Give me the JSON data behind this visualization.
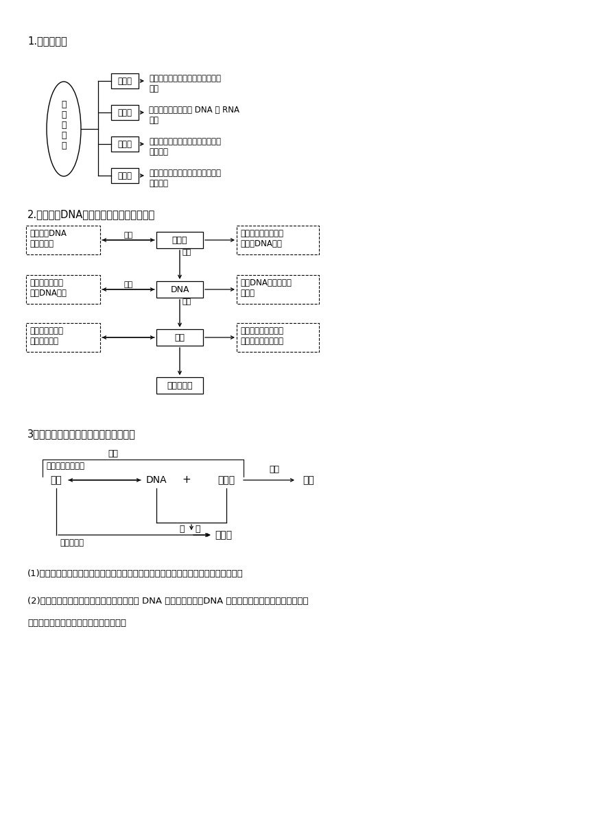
{
  "bg_color": "#ffffff",
  "text_color": "#000000",
  "section1_title": "1.基因的内涵",
  "section2_title": "2.染色体、DNA、基因、脱氧核苷酸的关系",
  "section3_title": "3．基因、染色体、蛋白质、性状的关系",
  "note1": "(1)对于真核细胞来说，染色体是基因的主要载体；线粒体和叶绿体是基因的次要载体。",
  "note2_line1": "(2)对于原核细胞来说，基因存在于拟核中的 DNA 分子或质粒上，DNA 是裸露的，并没有与蛋白质一起构",
  "note2_line2": "成染色体，因此，没有染色体这一载体。",
  "oval_text": "基\n因\n的\n内\n涵",
  "box1_label": "功能上",
  "box2_label": "本质上",
  "box3_label": "结构上",
  "box4_label": "位置上",
  "desc1": "基因是遗传物质结构和功能的基本\n单位",
  "desc2": "基因是有遗传效应的 DNA 或 RNA\n片段",
  "desc3": "基因是含有特定遗传信息的脱氧核\n苷酸序列",
  "desc4": "基因在染色体上有特定的位置，呈\n线性排列",
  "sec2_box1": "染色体",
  "sec2_box2": "DNA",
  "sec2_box3": "基因",
  "sec2_box4": "脱氧核苷酸",
  "left1_line1": "染色体是DNA",
  "left1_line2": "的主要载体",
  "left2_line1": "基因是有遗传效",
  "left2_line2": "应的DNA片段",
  "left3_line1": "脱氧核苷酸是基",
  "left3_line2": "因的基本单位",
  "right1_line1": "每条染色体上有一个",
  "right1_line2": "或两个DNA分子",
  "right2_line1": "每个DNA分子含有许",
  "right2_line2": "多基因",
  "right3_line1": "基因的脱氧核苷酸排",
  "right3_line2": "列顺序代表遗传信息",
  "label_weizhi": "位置",
  "label_shuliang1": "数量",
  "label_benzhi": "本质",
  "label_shuliang2": "数量",
  "s3_gene": "基因",
  "s3_dna": "DNA",
  "s3_plus": "+",
  "s3_protein": "蛋白质",
  "s3_trait": "性状",
  "s3_chromosome": "染色体",
  "s3_control": "控制",
  "s3_segment": "有遗传效应的片段",
  "s3_express": "体现",
  "s3_compose1": "组",
  "s3_compose2": "成",
  "s3_linear": "呈线性排列"
}
